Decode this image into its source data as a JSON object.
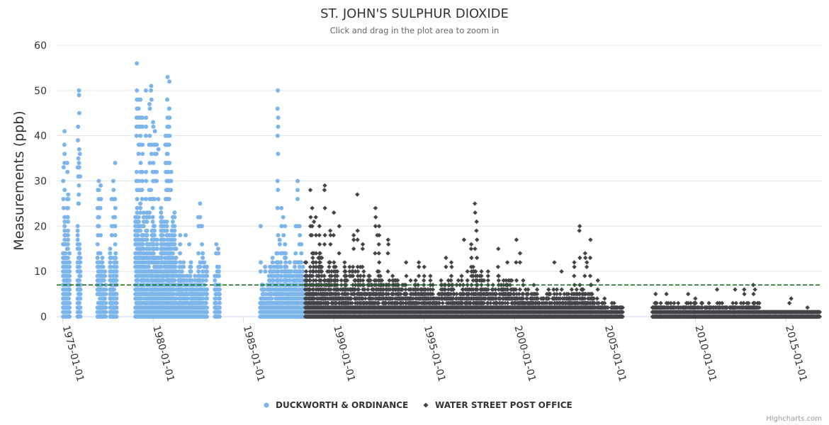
{
  "chart_data": {
    "type": "scatter",
    "title": "ST. JOHN'S SULPHUR DIOXIDE",
    "subtitle": "Click and drag in the plot area to zoom in",
    "ylabel": "Measurements (ppb)",
    "xlabel": "",
    "ylim": [
      0,
      60
    ],
    "yticks": [
      "0",
      "10",
      "20",
      "30",
      "40",
      "50",
      "60"
    ],
    "xlim": [
      "1974-09-01",
      "2017-01-01"
    ],
    "xticks": [
      "1975-01-01",
      "1980-01-01",
      "1985-01-01",
      "1990-01-01",
      "1995-01-01",
      "2000-01-01",
      "2005-01-01",
      "2010-01-01",
      "2015-01-01"
    ],
    "reference_line": {
      "value": 7,
      "color": "#1a6e1a",
      "style": "dashed"
    },
    "series": [
      {
        "name": "DUCKWORTH & ORDINANCE",
        "color": "#7cb5ec",
        "marker": "circle",
        "clusters": [
          {
            "start": 1975.0,
            "end": 1975.4,
            "typical_max": 22,
            "peaks": [
              [
                1975.1,
                41
              ],
              [
                1975.25,
                34
              ],
              [
                1975.05,
                33
              ],
              [
                1975.3,
                27
              ]
            ]
          },
          {
            "start": 1975.8,
            "end": 1976.0,
            "typical_max": 25,
            "peaks": [
              [
                1975.9,
                50
              ],
              [
                1975.85,
                42
              ],
              [
                1975.95,
                36
              ],
              [
                1975.9,
                34
              ]
            ]
          },
          {
            "start": 1976.9,
            "end": 1977.4,
            "typical_max": 14,
            "peaks": [
              [
                1977.0,
                30
              ],
              [
                1977.1,
                29
              ],
              [
                1976.95,
                28
              ]
            ]
          },
          {
            "start": 1977.6,
            "end": 1978.0,
            "typical_max": 16,
            "peaks": [
              [
                1977.9,
                34
              ],
              [
                1977.8,
                30
              ],
              [
                1977.7,
                26
              ]
            ]
          },
          {
            "start": 1979.0,
            "end": 1980.6,
            "typical_max": 26,
            "peaks": [
              [
                1979.1,
                56
              ],
              [
                1979.2,
                48
              ],
              [
                1979.3,
                48
              ],
              [
                1979.6,
                50
              ],
              [
                1979.9,
                51
              ],
              [
                1980.0,
                43
              ],
              [
                1980.1,
                41
              ],
              [
                1980.2,
                38
              ],
              [
                1979.4,
                44
              ],
              [
                1979.8,
                47
              ],
              [
                1980.3,
                37
              ]
            ]
          },
          {
            "start": 1980.6,
            "end": 1981.3,
            "typical_max": 26,
            "peaks": [
              [
                1980.8,
                53
              ],
              [
                1980.9,
                52
              ],
              [
                1980.9,
                46
              ],
              [
                1980.8,
                44
              ],
              [
                1980.85,
                42
              ],
              [
                1980.7,
                40
              ],
              [
                1980.75,
                38
              ],
              [
                1981.0,
                32
              ]
            ]
          },
          {
            "start": 1981.3,
            "end": 1982.3,
            "typical_max": 12,
            "peaks": [
              [
                1981.5,
                18
              ],
              [
                1981.8,
                18
              ],
              [
                1982.0,
                16
              ]
            ]
          },
          {
            "start": 1982.3,
            "end": 1983.0,
            "typical_max": 14,
            "peaks": [
              [
                1982.6,
                25
              ],
              [
                1982.5,
                22
              ],
              [
                1982.7,
                20
              ]
            ]
          },
          {
            "start": 1983.4,
            "end": 1983.7,
            "typical_max": 12,
            "peaks": [
              [
                1983.5,
                16
              ],
              [
                1983.6,
                15
              ]
            ]
          },
          {
            "start": 1985.9,
            "end": 1986.4,
            "typical_max": 8,
            "peaks": [
              [
                1985.95,
                20
              ],
              [
                1986.2,
                11
              ]
            ]
          },
          {
            "start": 1986.4,
            "end": 1987.4,
            "typical_max": 14,
            "peaks": [
              [
                1986.9,
                50
              ],
              [
                1987.1,
                24
              ],
              [
                1987.2,
                22
              ],
              [
                1987.3,
                20
              ],
              [
                1987.0,
                17
              ]
            ]
          },
          {
            "start": 1987.4,
            "end": 1988.4,
            "typical_max": 12,
            "peaks": [
              [
                1988.0,
                30
              ],
              [
                1987.9,
                20
              ],
              [
                1988.1,
                20
              ],
              [
                1988.2,
                16
              ]
            ]
          }
        ]
      },
      {
        "name": "WATER STREET POST OFFICE",
        "color": "#434348",
        "marker": "diamond",
        "clusters": [
          {
            "start": 1988.4,
            "end": 1989.4,
            "typical_max": 14,
            "peaks": [
              [
                1988.7,
                28
              ],
              [
                1988.8,
                24
              ],
              [
                1989.0,
                22
              ],
              [
                1988.9,
                21
              ],
              [
                1989.2,
                20
              ]
            ]
          },
          {
            "start": 1989.4,
            "end": 1990.8,
            "typical_max": 12,
            "peaks": [
              [
                1989.5,
                29
              ],
              [
                1990.0,
                23
              ],
              [
                1990.3,
                20
              ],
              [
                1989.8,
                19
              ]
            ]
          },
          {
            "start": 1990.8,
            "end": 1992.0,
            "typical_max": 11,
            "peaks": [
              [
                1991.3,
                27
              ],
              [
                1991.1,
                18
              ],
              [
                1991.6,
                16
              ]
            ]
          },
          {
            "start": 1992.0,
            "end": 1993.5,
            "typical_max": 10,
            "peaks": [
              [
                1992.3,
                24
              ],
              [
                1992.5,
                20
              ],
              [
                1993.0,
                17
              ],
              [
                1992.4,
                18
              ]
            ]
          },
          {
            "start": 1993.5,
            "end": 1995.5,
            "typical_max": 9,
            "peaks": [
              [
                1994.0,
                12
              ],
              [
                1994.7,
                12
              ],
              [
                1995.0,
                11
              ]
            ]
          },
          {
            "start": 1995.5,
            "end": 1997.0,
            "typical_max": 9,
            "peaks": [
              [
                1996.2,
                13
              ],
              [
                1996.5,
                12
              ]
            ]
          },
          {
            "start": 1997.0,
            "end": 1998.6,
            "typical_max": 11,
            "peaks": [
              [
                1997.8,
                25
              ],
              [
                1997.9,
                21
              ],
              [
                1997.2,
                17
              ],
              [
                1997.6,
                16
              ]
            ]
          },
          {
            "start": 1998.6,
            "end": 2000.0,
            "typical_max": 9,
            "peaks": [
              [
                1999.1,
                15
              ],
              [
                1999.6,
                12
              ]
            ]
          },
          {
            "start": 2000.0,
            "end": 2001.4,
            "typical_max": 8,
            "peaks": [
              [
                2000.1,
                17
              ],
              [
                2000.3,
                14
              ]
            ]
          },
          {
            "start": 2001.4,
            "end": 2003.0,
            "typical_max": 6,
            "peaks": [
              [
                2002.2,
                12
              ],
              [
                2002.6,
                10
              ]
            ]
          },
          {
            "start": 2003.0,
            "end": 2004.4,
            "typical_max": 7,
            "peaks": [
              [
                2003.6,
                20
              ],
              [
                2004.2,
                17
              ],
              [
                2003.3,
                12
              ],
              [
                2003.9,
                14
              ],
              [
                2004.0,
                12
              ]
            ]
          },
          {
            "start": 2004.4,
            "end": 2005.0,
            "typical_max": 4,
            "peaks": [
              [
                2004.6,
                8
              ]
            ]
          },
          {
            "start": 2005.0,
            "end": 2006.0,
            "typical_max": 3,
            "peaks": [
              [
                2005.5,
                3
              ]
            ]
          },
          {
            "start": 2007.6,
            "end": 2008.8,
            "typical_max": 3,
            "peaks": [
              [
                2007.8,
                5
              ],
              [
                2008.4,
                5
              ]
            ]
          },
          {
            "start": 2008.8,
            "end": 2011.0,
            "typical_max": 3,
            "peaks": [
              [
                2009.6,
                5
              ],
              [
                2010.0,
                4
              ]
            ]
          },
          {
            "start": 2011.0,
            "end": 2013.6,
            "typical_max": 3,
            "peaks": [
              [
                2011.2,
                6
              ],
              [
                2012.2,
                6
              ],
              [
                2012.7,
                6
              ],
              [
                2013.2,
                7
              ],
              [
                2013.3,
                6
              ]
            ]
          },
          {
            "start": 2013.6,
            "end": 2016.9,
            "typical_max": 1,
            "peaks": [
              [
                2015.3,
                4
              ],
              [
                2015.2,
                3
              ],
              [
                2016.2,
                2
              ]
            ]
          }
        ]
      }
    ],
    "legend": [
      "DUCKWORTH & ORDINANCE",
      "WATER STREET POST OFFICE"
    ],
    "legend_position": "bottom-center"
  },
  "credits": "Highcharts.com"
}
